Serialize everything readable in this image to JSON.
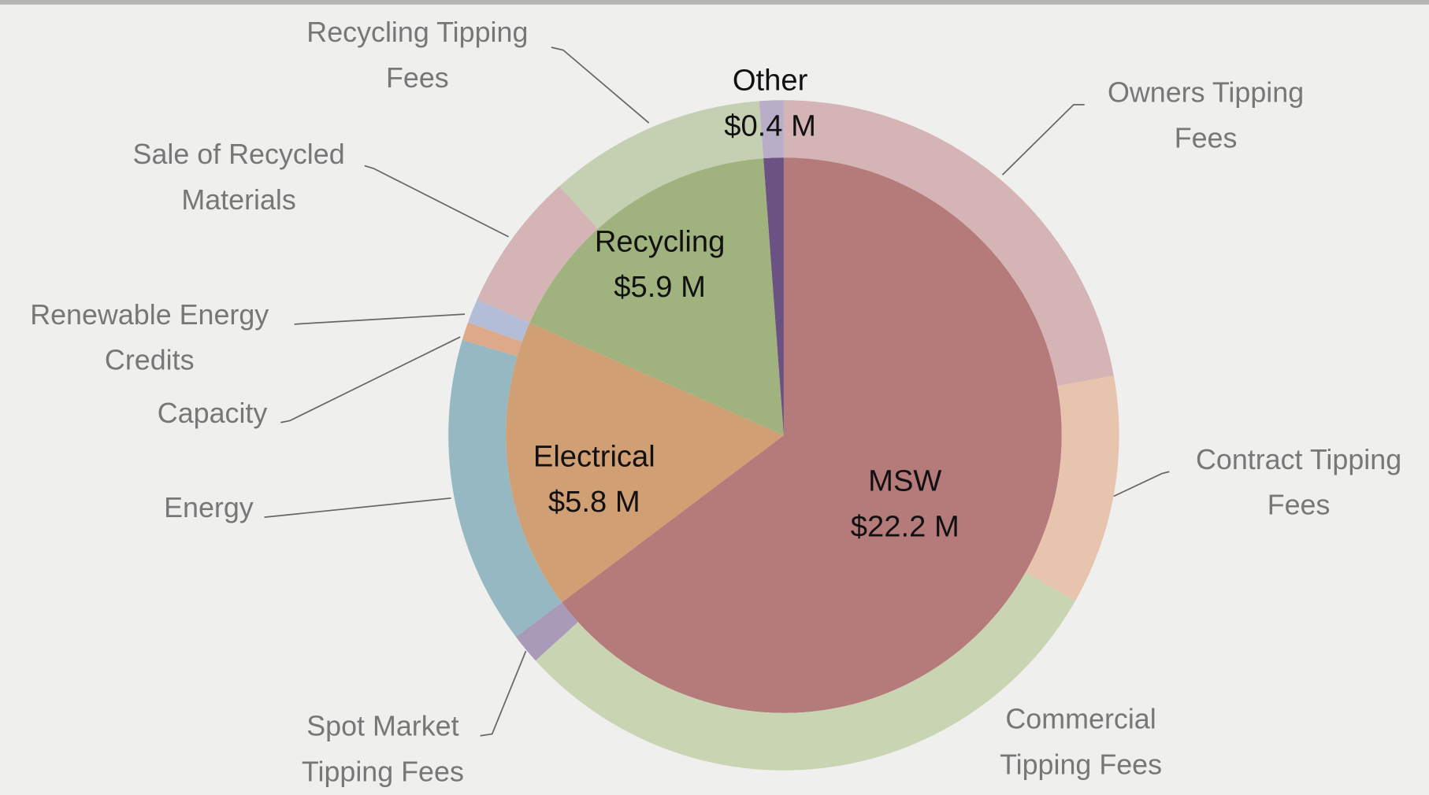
{
  "chart_data": {
    "type": "sunburst",
    "categories": [
      "MSW",
      "Electrical",
      "Recycling",
      "Other"
    ],
    "values": [
      22.2,
      5.8,
      5.9,
      0.4
    ],
    "value_labels": [
      "$22.2 M",
      "$5.8 M",
      "$5.9 M",
      "$0.4 M"
    ],
    "colors": [
      "#b57a7a",
      "#d19f74",
      "#a0b27d",
      "#6b5283"
    ],
    "outer": {
      "categories": [
        "Owners Tipping Fees",
        "Contract Tipping Fees",
        "Commercial Tipping Fees",
        "Spot Market Tipping Fees",
        "Energy",
        "Capacity",
        "Renewable Energy Credits",
        "Sale of Recycled Materials",
        "Recycling Tipping Fees",
        null
      ],
      "values": [
        7.6,
        3.8,
        10.3,
        0.5,
        5.1,
        0.3,
        0.4,
        2.3,
        3.6,
        0.4
      ],
      "colors": [
        "#d5b4b6",
        "#e7c4ae",
        "#c9d4b3",
        "#a99ab8",
        "#95b8c3",
        "#dda98a",
        "#b3bdd7",
        "#d5b4b6",
        "#c5d0b2",
        "#b8aec8"
      ]
    }
  }
}
